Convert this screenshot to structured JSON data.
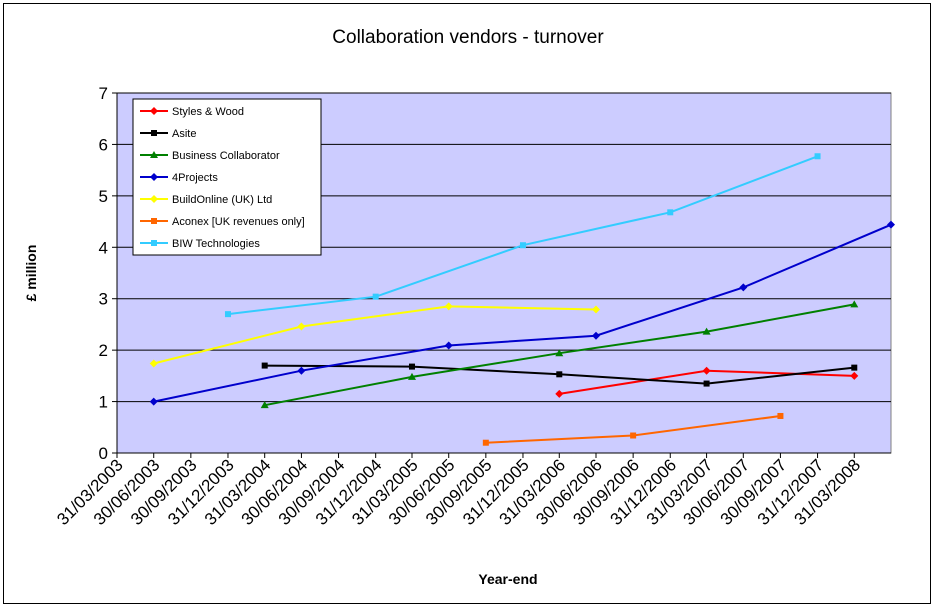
{
  "chart_data": {
    "type": "line",
    "title": "Collaboration vendors - turnover",
    "xlabel": "Year-end",
    "ylabel": "£ million",
    "ylim": [
      0,
      7
    ],
    "yticks": [
      "0",
      "1",
      "2",
      "3",
      "4",
      "5",
      "6",
      "7"
    ],
    "grid": true,
    "plot_background": "#ccccff",
    "legend_position": "top-left",
    "categories": [
      "31/03/2003",
      "30/06/2003",
      "30/09/2003",
      "31/12/2003",
      "31/03/2004",
      "30/06/2004",
      "30/09/2004",
      "31/12/2004",
      "31/03/2005",
      "30/06/2005",
      "30/09/2005",
      "31/12/2005",
      "31/03/2006",
      "30/06/2006",
      "30/09/2006",
      "31/12/2006",
      "31/03/2007",
      "30/06/2007",
      "30/09/2007",
      "31/12/2007",
      "31/03/2008"
    ],
    "series": [
      {
        "name": "Styles & Wood",
        "color": "#ff0000",
        "marker": "diamond",
        "points": [
          [
            "2006-03-31",
            1.15
          ],
          [
            "2007-03-31",
            1.6
          ],
          [
            "2008-03-31",
            1.5
          ]
        ]
      },
      {
        "name": "Asite",
        "color": "#000000",
        "marker": "square",
        "points": [
          [
            "2004-03-31",
            1.7
          ],
          [
            "2005-03-31",
            1.68
          ],
          [
            "2006-03-31",
            1.53
          ],
          [
            "2007-03-31",
            1.35
          ],
          [
            "2008-03-31",
            1.66
          ]
        ]
      },
      {
        "name": "Business Collaborator",
        "color": "#008000",
        "marker": "triangle",
        "points": [
          [
            "2004-03-31",
            0.93
          ],
          [
            "2005-03-31",
            1.48
          ],
          [
            "2006-03-31",
            1.94
          ],
          [
            "2007-03-31",
            2.36
          ],
          [
            "2008-03-31",
            2.89
          ]
        ]
      },
      {
        "name": "4Projects",
        "color": "#0000cc",
        "marker": "diamond",
        "points": [
          [
            "2003-06-30",
            1.0
          ],
          [
            "2004-06-30",
            1.6
          ],
          [
            "2005-06-30",
            2.09
          ],
          [
            "2006-06-30",
            2.28
          ],
          [
            "2007-06-30",
            3.22
          ],
          [
            "2008-06-30",
            4.44
          ]
        ]
      },
      {
        "name": "BuildOnline (UK) Ltd",
        "color": "#ffff00",
        "marker": "diamond",
        "points": [
          [
            "2003-06-30",
            1.74
          ],
          [
            "2004-06-30",
            2.46
          ],
          [
            "2005-06-30",
            2.85
          ],
          [
            "2006-06-30",
            2.79
          ]
        ]
      },
      {
        "name": "Aconex [UK revenues only]",
        "color": "#ff6600",
        "marker": "square",
        "points": [
          [
            "2005-09-30",
            0.2
          ],
          [
            "2006-09-30",
            0.34
          ],
          [
            "2007-09-30",
            0.72
          ]
        ]
      },
      {
        "name": "BIW Technologies",
        "color": "#33ccff",
        "marker": "square",
        "points": [
          [
            "2003-12-31",
            2.7
          ],
          [
            "2004-12-31",
            3.04
          ],
          [
            "2005-12-31",
            4.04
          ],
          [
            "2006-12-31",
            4.68
          ],
          [
            "2007-12-31",
            5.77
          ]
        ]
      }
    ]
  }
}
